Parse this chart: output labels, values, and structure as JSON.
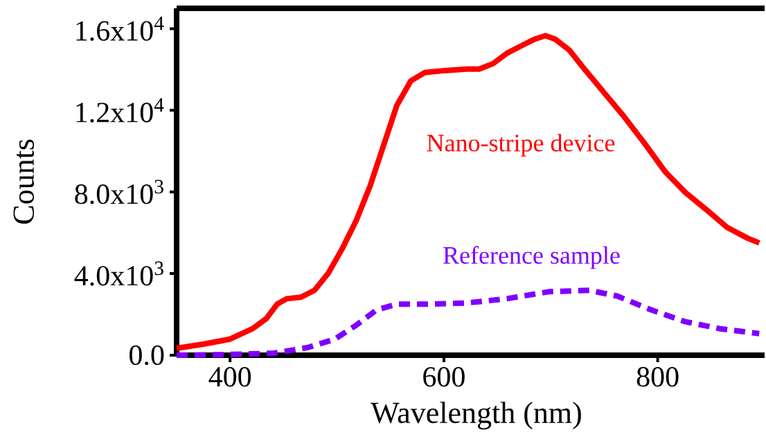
{
  "chart_data": {
    "type": "line",
    "xlabel": "Wavelength (nm)",
    "ylabel": "Counts",
    "xlim": [
      350,
      900
    ],
    "ylim": [
      0,
      17000
    ],
    "xticks": [
      400,
      600,
      800
    ],
    "yticks": [
      {
        "value": 0,
        "label": "0.0"
      },
      {
        "value": 4000,
        "label": "4.0x10$^{3}$"
      },
      {
        "value": 8000,
        "label": "8.0x10$^{3}$"
      },
      {
        "value": 12000,
        "label": "1.2x10$^{4}$"
      },
      {
        "value": 16000,
        "label": "1.6x10$^{4}$"
      }
    ],
    "grid": false,
    "series": [
      {
        "name": "Nano-stripe device",
        "color": "#ff0000",
        "line_style": "solid",
        "x": [
          350,
          376,
          400,
          421,
          434,
          444,
          453,
          466,
          479,
          492,
          505,
          518,
          531,
          543,
          556,
          569,
          582,
          601,
          621,
          633,
          646,
          659,
          672,
          685,
          695,
          704,
          717,
          730,
          749,
          768,
          788,
          807,
          826,
          846,
          865,
          884,
          895
        ],
        "values": [
          340,
          550,
          790,
          1300,
          1800,
          2500,
          2770,
          2840,
          3180,
          4030,
          5230,
          6600,
          8300,
          10190,
          12240,
          13440,
          13850,
          13950,
          14020,
          14020,
          14290,
          14800,
          15150,
          15490,
          15660,
          15490,
          14970,
          14120,
          12920,
          11730,
          10360,
          8990,
          7970,
          7110,
          6260,
          5740,
          5500
        ]
      },
      {
        "name": "Reference sample",
        "color": "#7f00ff",
        "line_style": "dashed",
        "x": [
          350,
          395,
          441,
          473,
          498,
          518,
          537,
          556,
          582,
          621,
          659,
          698,
          736,
          762,
          794,
          826,
          858,
          895
        ],
        "values": [
          0,
          30,
          100,
          380,
          790,
          1470,
          2220,
          2500,
          2500,
          2560,
          2770,
          3110,
          3180,
          2900,
          2220,
          1640,
          1300,
          1060
        ]
      }
    ]
  }
}
